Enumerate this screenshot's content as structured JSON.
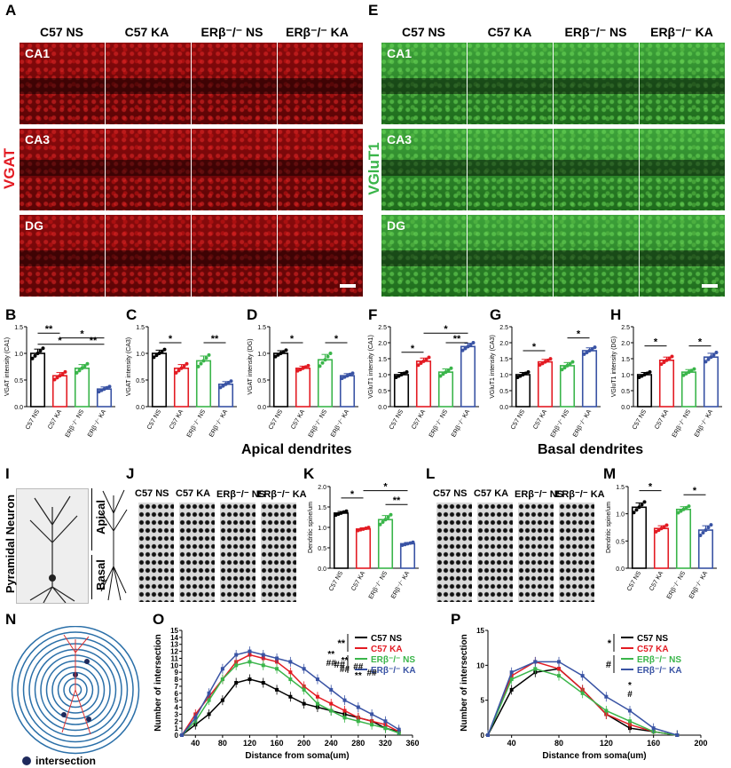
{
  "panels": {
    "A": "A",
    "E": "E",
    "B": "B",
    "C": "C",
    "D": "D",
    "F": "F",
    "G": "G",
    "H": "H",
    "I": "I",
    "J": "J",
    "K": "K",
    "L": "L",
    "M": "M",
    "N": "N",
    "O": "O",
    "P": "P"
  },
  "groups": [
    "C57 NS",
    "C57 KA",
    "ERβ-/- NS",
    "ERβ-/- KA"
  ],
  "groups_html": [
    "C57 NS",
    "C57 KA",
    "ERβ⁻/⁻ NS",
    "ERβ⁻/⁻ KA"
  ],
  "regions": [
    "CA1",
    "CA3",
    "DG"
  ],
  "stain_left": "VGAT",
  "stain_right": "VGluT1",
  "section_apical": "Apical dendrites",
  "section_basal": "Basal dendrites",
  "neuron_label": "Pyramidal Neuron",
  "apical_label": "Apical",
  "basal_label": "Basal",
  "intersection_label": "intersection",
  "colors": {
    "c57ns": "#000000",
    "c57ka": "#e31b23",
    "erns": "#3ab54a",
    "erka": "#3953a4"
  },
  "chart_data": [
    {
      "id": "B",
      "type": "bar",
      "categories": [
        "C57 NS",
        "C57 KA",
        "ERβ-/- NS",
        "ERβ-/- KA"
      ],
      "values": [
        1.0,
        0.58,
        0.72,
        0.33
      ],
      "errors": [
        0.08,
        0.06,
        0.07,
        0.04
      ],
      "ylabel": "VGAT intensity (CA1)",
      "ylim": [
        0,
        1.5
      ],
      "yticks": [
        "0.0",
        "0.5",
        "1.0",
        "1.5"
      ],
      "sig": [
        "**",
        "*",
        "*",
        "**"
      ]
    },
    {
      "id": "C",
      "type": "bar",
      "categories": [
        "C57 NS",
        "C57 KA",
        "ERβ-/- NS",
        "ERβ-/- KA"
      ],
      "values": [
        1.0,
        0.72,
        0.86,
        0.42
      ],
      "errors": [
        0.06,
        0.07,
        0.09,
        0.05
      ],
      "ylabel": "VGAT intensity (CA3)",
      "ylim": [
        0,
        1.5
      ],
      "yticks": [
        "0.0",
        "0.5",
        "1.0",
        "1.5"
      ],
      "sig": [
        "*",
        "**"
      ]
    },
    {
      "id": "D",
      "type": "bar",
      "categories": [
        "C57 NS",
        "C57 KA",
        "ERβ-/- NS",
        "ERβ-/- KA"
      ],
      "values": [
        1.0,
        0.72,
        0.88,
        0.58
      ],
      "errors": [
        0.05,
        0.04,
        0.1,
        0.04
      ],
      "ylabel": "VGAT intensity (DG)",
      "ylim": [
        0,
        1.5
      ],
      "yticks": [
        "0.0",
        "0.5",
        "1.0",
        "1.5"
      ],
      "sig": [
        "*",
        "*"
      ]
    },
    {
      "id": "F",
      "type": "bar",
      "categories": [
        "C57 NS",
        "C57 KA",
        "ERβ-/- NS",
        "ERβ-/- KA"
      ],
      "values": [
        1.0,
        1.42,
        1.08,
        1.88
      ],
      "errors": [
        0.07,
        0.1,
        0.1,
        0.1
      ],
      "ylabel": "VGluT1 intensity (CA1)",
      "ylim": [
        0,
        2.5
      ],
      "yticks": [
        "0.0",
        "0.5",
        "1.0",
        "1.5",
        "2.0",
        "2.5"
      ],
      "sig": [
        "*",
        "*",
        "**"
      ]
    },
    {
      "id": "G",
      "type": "bar",
      "categories": [
        "C57 NS",
        "C57 KA",
        "ERβ-/- NS",
        "ERβ-/- KA"
      ],
      "values": [
        1.0,
        1.4,
        1.28,
        1.75
      ],
      "errors": [
        0.07,
        0.08,
        0.1,
        0.09
      ],
      "ylabel": "VGluT1 intensity (CA3)",
      "ylim": [
        0,
        2.5
      ],
      "yticks": [
        "0.0",
        "0.5",
        "1.0",
        "1.5",
        "2.0",
        "2.5"
      ],
      "sig": [
        "*",
        "*"
      ]
    },
    {
      "id": "H",
      "type": "bar",
      "categories": [
        "C57 NS",
        "C57 KA",
        "ERβ-/- NS",
        "ERβ-/- KA"
      ],
      "values": [
        1.0,
        1.45,
        1.08,
        1.55
      ],
      "errors": [
        0.07,
        0.1,
        0.08,
        0.12
      ],
      "ylabel": "VGluT1 intensity (DG)",
      "ylim": [
        0,
        2.5
      ],
      "yticks": [
        "0.0",
        "0.5",
        "1.0",
        "1.5",
        "2.0",
        "2.5"
      ],
      "sig": [
        "*",
        "*"
      ]
    },
    {
      "id": "K",
      "type": "bar",
      "categories": [
        "C57 NS",
        "C57 KA",
        "ERβ-/- NS",
        "ERβ-/- KA"
      ],
      "values": [
        1.35,
        0.96,
        1.19,
        0.6
      ],
      "errors": [
        0.04,
        0.03,
        0.1,
        0.03
      ],
      "ylabel": "Dendritic spine/um",
      "ylim": [
        0,
        2.0
      ],
      "yticks": [
        "0.0",
        "0.5",
        "1.0",
        "1.5",
        "2.0"
      ],
      "sig": [
        "*",
        "*",
        "**"
      ]
    },
    {
      "id": "M",
      "type": "bar",
      "categories": [
        "C57 NS",
        "C57 KA",
        "ERβ-/- NS",
        "ERβ-/- KA"
      ],
      "values": [
        1.12,
        0.73,
        1.08,
        0.7
      ],
      "errors": [
        0.08,
        0.05,
        0.05,
        0.08
      ],
      "ylabel": "Dendritic spine/um",
      "ylim": [
        0,
        1.5
      ],
      "yticks": [
        "0.0",
        "0.5",
        "1.0",
        "1.5"
      ],
      "sig": [
        "*",
        "*"
      ]
    },
    {
      "id": "O",
      "type": "line",
      "x": [
        20,
        40,
        60,
        80,
        100,
        120,
        140,
        160,
        180,
        200,
        220,
        240,
        260,
        280,
        300,
        320,
        340
      ],
      "series": [
        {
          "name": "C57 NS",
          "values": [
            0,
            1.5,
            3,
            5,
            7.5,
            8,
            7.5,
            6.5,
            5.5,
            4.5,
            4,
            3.5,
            3,
            2.5,
            2,
            1,
            0.5
          ]
        },
        {
          "name": "C57 KA",
          "values": [
            0,
            3,
            5.5,
            8,
            10.5,
            11.5,
            11,
            10.5,
            9,
            7,
            5.5,
            4.5,
            3.5,
            2.5,
            2,
            1.5,
            0.5
          ]
        },
        {
          "name": "ERβ-/- NS",
          "values": [
            0,
            2,
            5,
            8,
            10,
            10.5,
            10,
            9.5,
            8,
            6.5,
            4.5,
            3.5,
            2.5,
            2,
            1.5,
            1,
            0.3
          ]
        },
        {
          "name": "ERβ-/- KA",
          "values": [
            0,
            2.5,
            6,
            9.5,
            11.5,
            12,
            11.5,
            11,
            10.5,
            9.5,
            8,
            6.5,
            5,
            4,
            3,
            2,
            0.8
          ]
        }
      ],
      "xlabel": "Distance from soma(um)",
      "ylabel": "Number of intersection",
      "xlim": [
        20,
        360
      ],
      "ylim": [
        0,
        15
      ],
      "xticks": [
        "40",
        "80",
        "120",
        "160",
        "200",
        "240",
        "280",
        "320",
        "360"
      ],
      "yticks": [
        "0",
        "1",
        "2",
        "3",
        "4",
        "5",
        "6",
        "7",
        "8",
        "9",
        "10",
        "11",
        "12",
        "13",
        "14",
        "15"
      ],
      "annotations": [
        "**",
        "##",
        "**",
        "##",
        "**",
        "##",
        "##",
        "**",
        "##"
      ]
    },
    {
      "id": "P",
      "type": "line",
      "x": [
        20,
        40,
        60,
        80,
        100,
        120,
        140,
        160,
        180
      ],
      "series": [
        {
          "name": "C57 NS",
          "values": [
            0,
            6.5,
            9,
            9.5,
            6.5,
            3,
            1,
            0.5,
            0
          ]
        },
        {
          "name": "C57 KA",
          "values": [
            0,
            8.5,
            10.5,
            9.5,
            6.5,
            3,
            1.5,
            0.5,
            0
          ]
        },
        {
          "name": "ERβ-/- NS",
          "values": [
            0,
            8,
            9.5,
            8.5,
            6,
            3.5,
            2,
            0.5,
            0
          ]
        },
        {
          "name": "ERβ-/- KA",
          "values": [
            0,
            9,
            10.5,
            10.5,
            8.5,
            5.5,
            3.5,
            1,
            0
          ]
        }
      ],
      "xlabel": "Distance from soma(um)",
      "ylabel": "Number of intersection",
      "xlim": [
        20,
        200
      ],
      "ylim": [
        0,
        15
      ],
      "xticks": [
        "40",
        "80",
        "120",
        "160",
        "200"
      ],
      "yticks": [
        "0",
        "5",
        "10",
        "15"
      ],
      "annotations": [
        "*",
        "#",
        "*",
        "#"
      ]
    }
  ]
}
